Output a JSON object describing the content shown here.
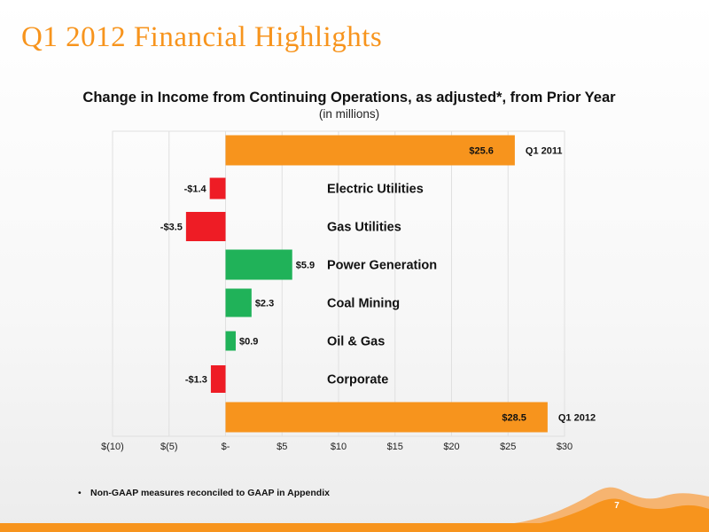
{
  "slide": {
    "title": "Q1 2012 Financial Highlights",
    "footnote": "Non-GAAP measures reconciled to GAAP in Appendix",
    "footnote_bullet": "•",
    "page_number": "7",
    "accent_color": "#f7941d"
  },
  "chart_data": {
    "type": "bar",
    "orientation": "horizontal",
    "subtype": "waterfall",
    "title": "Change in Income from Continuing Operations, as adjusted*, from Prior Year",
    "subtitle": "(in millions)",
    "xlim": [
      -10,
      30
    ],
    "x_ticks": [
      -10,
      -5,
      0,
      5,
      10,
      15,
      20,
      25,
      30
    ],
    "x_tick_labels": [
      "$(10)",
      "$(5)",
      "$-",
      "$5",
      "$10",
      "$15",
      "$20",
      "$25",
      "$30"
    ],
    "grid": "vertical",
    "colors": {
      "total": "#f7941d",
      "increase": "#20b259",
      "decrease": "#ee1c25"
    },
    "bars": [
      {
        "category": "Q1 2011",
        "value": 25.6,
        "value_label": "$25.6",
        "kind": "total"
      },
      {
        "category": "Electric Utilities",
        "value": -1.4,
        "value_label": "-$1.4",
        "kind": "decrease"
      },
      {
        "category": "Gas Utilities",
        "value": -3.5,
        "value_label": "-$3.5",
        "kind": "decrease"
      },
      {
        "category": "Power Generation",
        "value": 5.9,
        "value_label": "$5.9",
        "kind": "increase"
      },
      {
        "category": "Coal Mining",
        "value": 2.3,
        "value_label": "$2.3",
        "kind": "increase"
      },
      {
        "category": "Oil & Gas",
        "value": 0.9,
        "value_label": "$0.9",
        "kind": "increase"
      },
      {
        "category": "Corporate",
        "value": -1.3,
        "value_label": "-$1.3",
        "kind": "decrease"
      },
      {
        "category": "Q1 2012",
        "value": 28.5,
        "value_label": "$28.5",
        "kind": "total"
      }
    ]
  }
}
